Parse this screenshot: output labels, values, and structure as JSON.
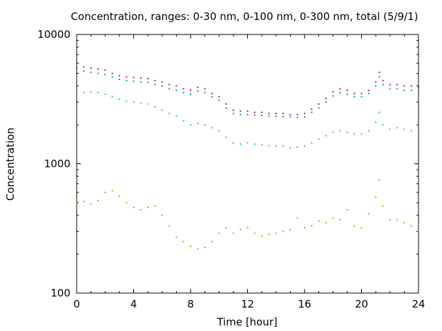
{
  "chart_data": {
    "type": "scatter",
    "title": "Concentration, ranges: 0-30 nm, 0-100 nm, 0-300 nm, total (5/9/1)",
    "xlabel": "Time [hour]",
    "ylabel": "Concentration",
    "xlim": [
      0,
      24
    ],
    "ylim": [
      100,
      10000
    ],
    "yscale": "log",
    "grid": false,
    "legend": "none",
    "x_ticks": [
      "0",
      "4",
      "8",
      "12",
      "16",
      "20",
      "24"
    ],
    "y_ticks": [
      "100",
      "1000",
      "10000"
    ],
    "x": [
      0,
      0.5,
      1,
      1.5,
      2,
      2.5,
      3,
      3.5,
      4,
      4.5,
      5,
      5.5,
      6,
      6.5,
      7,
      7.5,
      8,
      8.5,
      9,
      9.5,
      10,
      10.5,
      11,
      11.5,
      12,
      12.5,
      13,
      13.5,
      14,
      14.5,
      15,
      15.5,
      16,
      16.5,
      17,
      17.5,
      18,
      18.5,
      19,
      19.5,
      20,
      20.5,
      21,
      21.25,
      21.5,
      22,
      22.5,
      23,
      23.5,
      24
    ],
    "series": [
      {
        "color": "#b000b0",
        "values": [
          5500,
          5600,
          5500,
          5400,
          5300,
          5000,
          4800,
          4700,
          4650,
          4600,
          4550,
          4400,
          4300,
          4100,
          4000,
          3800,
          3700,
          3900,
          3800,
          3500,
          3300,
          2900,
          2600,
          2550,
          2550,
          2500,
          2500,
          2450,
          2450,
          2450,
          2400,
          2400,
          2450,
          2650,
          2900,
          3200,
          3600,
          3800,
          3700,
          3500,
          3500,
          3700,
          4300,
          5100,
          4400,
          4100,
          4100,
          4000,
          4000,
          3900
        ]
      },
      {
        "color": "#00a080",
        "values": [
          5100,
          5200,
          5100,
          5000,
          4900,
          4700,
          4500,
          4400,
          4350,
          4300,
          4250,
          4100,
          4000,
          3800,
          3700,
          3550,
          3450,
          3650,
          3550,
          3300,
          3100,
          2700,
          2450,
          2400,
          2400,
          2380,
          2370,
          2340,
          2330,
          2320,
          2300,
          2280,
          2300,
          2500,
          2700,
          3000,
          3350,
          3550,
          3450,
          3300,
          3300,
          3500,
          4000,
          4700,
          4100,
          3800,
          3800,
          3700,
          3700,
          3600
        ]
      },
      {
        "color": "#40b0e0",
        "values": [
          3400,
          3550,
          3600,
          3550,
          3450,
          3300,
          3150,
          3050,
          3000,
          2950,
          2900,
          2750,
          2600,
          2450,
          2350,
          2150,
          2000,
          2050,
          2000,
          1900,
          1800,
          1600,
          1450,
          1420,
          1450,
          1420,
          1400,
          1380,
          1370,
          1370,
          1330,
          1350,
          1370,
          1450,
          1550,
          1650,
          1750,
          1800,
          1750,
          1700,
          1700,
          1800,
          2100,
          2500,
          2000,
          1850,
          1900,
          1850,
          1800,
          1750
        ]
      },
      {
        "color": "#e09000",
        "values": [
          500,
          510,
          490,
          520,
          600,
          620,
          560,
          500,
          460,
          440,
          460,
          470,
          400,
          330,
          270,
          250,
          230,
          220,
          225,
          250,
          290,
          320,
          290,
          310,
          320,
          290,
          275,
          285,
          290,
          300,
          310,
          380,
          320,
          330,
          360,
          350,
          380,
          370,
          440,
          330,
          320,
          410,
          550,
          750,
          470,
          370,
          370,
          350,
          330,
          300
        ]
      }
    ]
  }
}
